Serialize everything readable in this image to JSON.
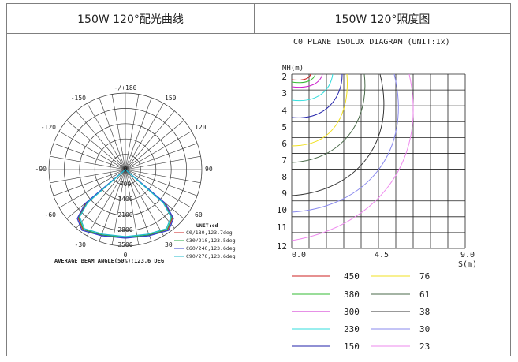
{
  "headers": {
    "left": "150W 120°配光曲线",
    "right": "150W 120°照度图"
  },
  "polar": {
    "angle_labels": {
      "top": "-/+180",
      "l150": "-150",
      "r150": "150",
      "l120": "-120",
      "r120": "120",
      "l90": "-90",
      "r90": "90",
      "l60": "-60",
      "r60": "60",
      "l30": "-30",
      "r30": "30",
      "bottom": "0"
    },
    "radial_labels": [
      "0",
      "700",
      "1400",
      "2100",
      "2800",
      "3500"
    ],
    "unit": "UNIT:cd",
    "legend": [
      {
        "label": "C0/180,123.7deg",
        "color": "#cc2222"
      },
      {
        "label": "C30/210,123.5deg",
        "color": "#22aa44"
      },
      {
        "label": "C60/240,123.6deg",
        "color": "#3344cc"
      },
      {
        "label": "C90/270,123.6deg",
        "color": "#22bbcc"
      }
    ],
    "beam_angle": "AVERAGE BEAM ANGLE(50%):123.6 DEG"
  },
  "isolux": {
    "title": "C0  PLANE  ISOLUX  DIAGRAM  (UNIT:1x)",
    "ylabel": "MH(m)",
    "xlabel": "S(m)",
    "y_ticks": [
      "2",
      "3",
      "4",
      "5",
      "6",
      "7",
      "8",
      "9",
      "10",
      "11",
      "12"
    ],
    "x_ticks": [
      "0.0",
      "4.5",
      "9.0"
    ],
    "legend": [
      {
        "value": "450",
        "color": "#cc2222"
      },
      {
        "value": "76",
        "color": "#f0e020"
      },
      {
        "value": "380",
        "color": "#33bb33"
      },
      {
        "value": "61",
        "color": "#4a6a4a"
      },
      {
        "value": "300",
        "color": "#cc22cc"
      },
      {
        "value": "38",
        "color": "#333333"
      },
      {
        "value": "230",
        "color": "#33dddd"
      },
      {
        "value": "30",
        "color": "#8888ee"
      },
      {
        "value": "150",
        "color": "#2222aa"
      },
      {
        "value": "23",
        "color": "#ee88ee"
      }
    ]
  }
}
